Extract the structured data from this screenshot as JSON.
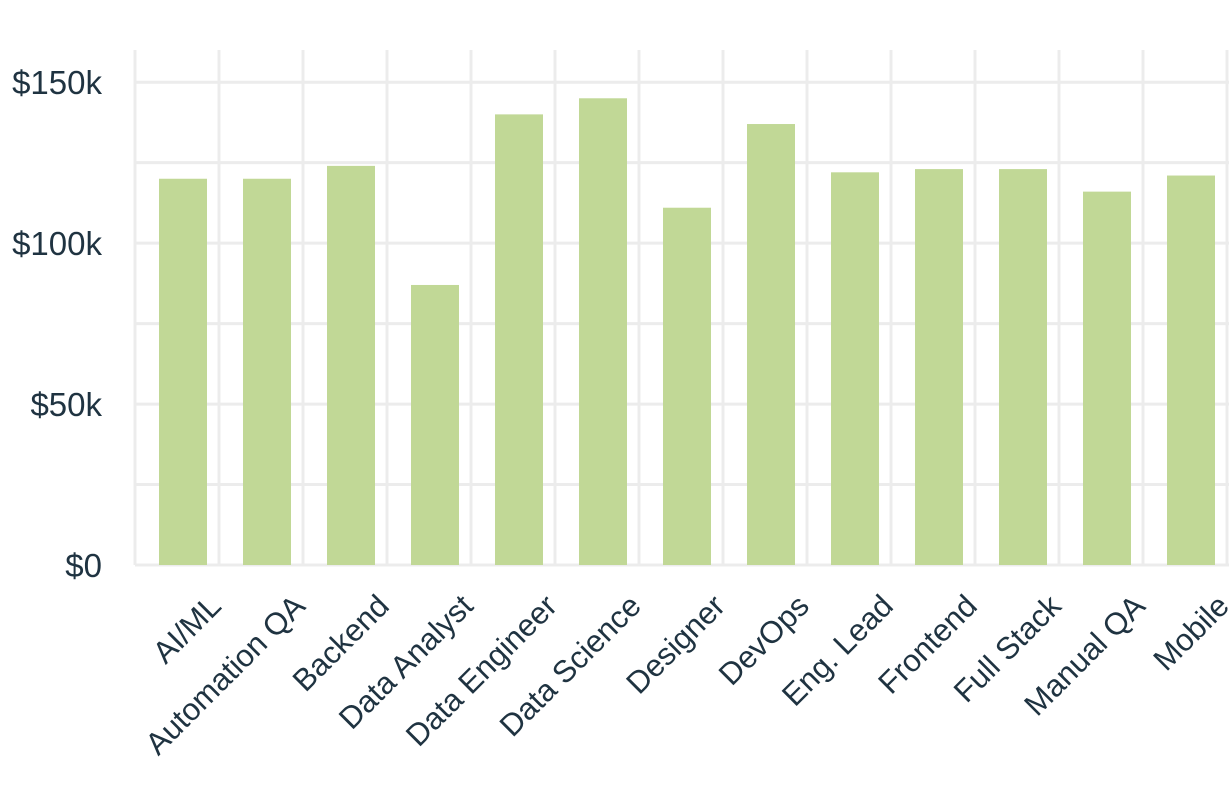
{
  "chart_data": {
    "type": "bar",
    "title": "",
    "xlabel": "",
    "ylabel": "",
    "categories": [
      "AI/ML",
      "Automation QA",
      "Backend",
      "Data Analyst",
      "Data Engineer",
      "Data Science",
      "Designer",
      "DevOps",
      "Eng. Lead",
      "Frontend",
      "Full Stack",
      "Manual QA",
      "Mobile"
    ],
    "values": [
      120000,
      120000,
      124000,
      87000,
      140000,
      145000,
      111000,
      137000,
      122000,
      123000,
      123000,
      116000,
      121000
    ],
    "ylim": [
      0,
      160000
    ],
    "yticks": [
      {
        "value": 0,
        "label": "$0"
      },
      {
        "value": 50000,
        "label": "$50k"
      },
      {
        "value": 100000,
        "label": "$100k"
      },
      {
        "value": 150000,
        "label": "$150k"
      }
    ],
    "grid": true,
    "bar_color": "#c1d896",
    "text_color": "#1f3341",
    "grid_color": "#ececec"
  }
}
